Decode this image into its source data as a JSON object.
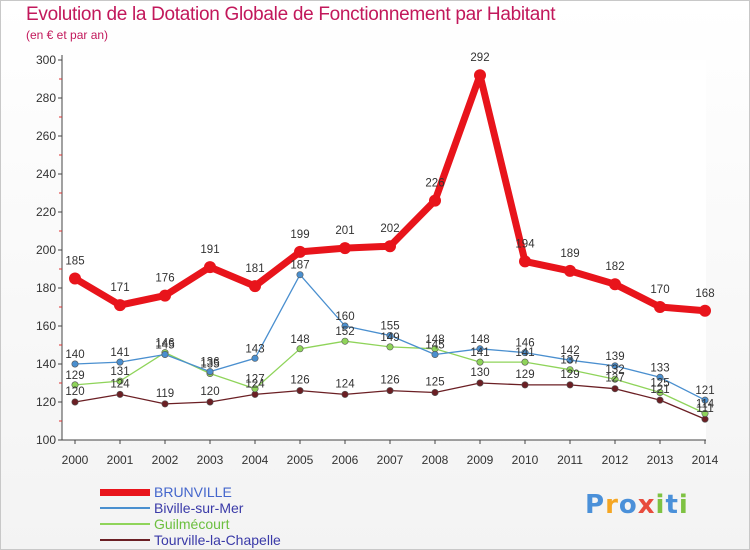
{
  "title": "Evolution de la Dotation Globale de Fonctionnement par Habitant",
  "subtitle": "(en € et par an)",
  "logo": {
    "text": "Proxiti",
    "letters": [
      "P",
      "r",
      "o",
      "x",
      "i",
      "t",
      "i"
    ],
    "colors": [
      "#4a90d9",
      "#f5a623",
      "#4a90d9",
      "#e84c3d",
      "#7ec242",
      "#4a90d9",
      "#7ec242"
    ]
  },
  "chart_data": {
    "type": "line",
    "title": "Evolution de la Dotation Globale de Fonctionnement par Habitant",
    "subtitle": "(en € et par an)",
    "x": [
      "2000",
      "2001",
      "2002",
      "2003",
      "2004",
      "2005",
      "2006",
      "2007",
      "2008",
      "2009",
      "2010",
      "2011",
      "2012",
      "2013",
      "2014"
    ],
    "ylim": [
      100,
      300
    ],
    "yticks": [
      100,
      120,
      140,
      160,
      180,
      200,
      220,
      240,
      260,
      280,
      300
    ],
    "grid": false,
    "legend_position": "bottom-left",
    "series": [
      {
        "name": "BRUNVILLE",
        "color": "#e8141b",
        "values": [
          185,
          171,
          176,
          191,
          181,
          199,
          201,
          202,
          226,
          292,
          194,
          189,
          182,
          170,
          168
        ]
      },
      {
        "name": "Biville-sur-Mer",
        "color": "#4a8fcf",
        "values": [
          140,
          141,
          145,
          136,
          143,
          187,
          160,
          155,
          145,
          148,
          146,
          142,
          139,
          133,
          121
        ]
      },
      {
        "name": "Guilmécourt",
        "color": "#8fd45a",
        "values": [
          129,
          131,
          146,
          135,
          127,
          148,
          152,
          149,
          148,
          141,
          141,
          137,
          132,
          125,
          114
        ]
      },
      {
        "name": "Tourville-la-Chapelle",
        "color": "#6b1f24",
        "values": [
          120,
          124,
          119,
          120,
          124,
          126,
          124,
          126,
          125,
          130,
          129,
          129,
          127,
          121,
          111
        ]
      }
    ]
  }
}
